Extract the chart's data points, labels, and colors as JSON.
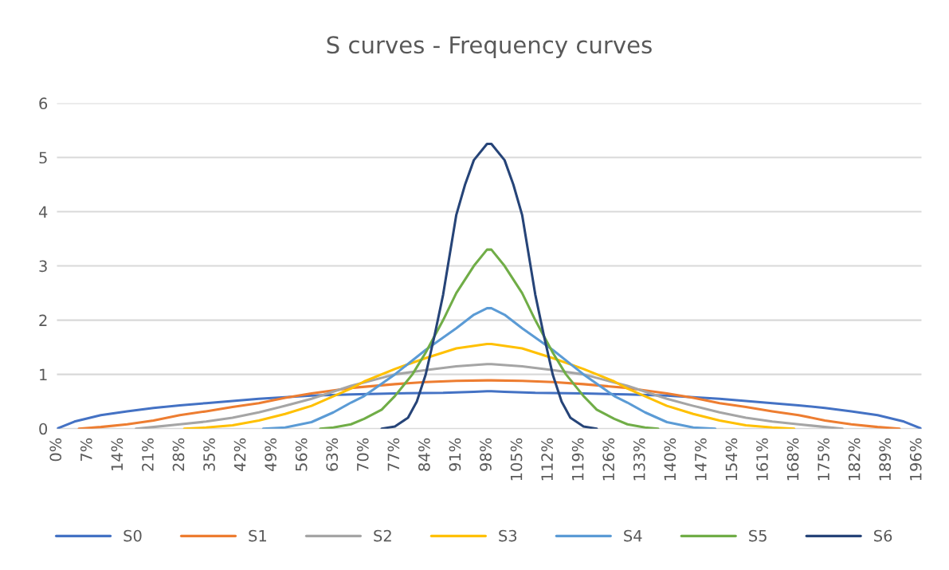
{
  "chart_data": {
    "type": "line",
    "title": "S curves - Frequency curves",
    "xlim": [
      0,
      197
    ],
    "xticks": [
      {
        "value": 0,
        "label": "0%"
      },
      {
        "value": 7,
        "label": "7%"
      },
      {
        "value": 14,
        "label": "14%"
      },
      {
        "value": 21,
        "label": "21%"
      },
      {
        "value": 28,
        "label": "28%"
      },
      {
        "value": 35,
        "label": "35%"
      },
      {
        "value": 42,
        "label": "42%"
      },
      {
        "value": 49,
        "label": "49%"
      },
      {
        "value": 56,
        "label": "56%"
      },
      {
        "value": 63,
        "label": "63%"
      },
      {
        "value": 70,
        "label": "70%"
      },
      {
        "value": 77,
        "label": "77%"
      },
      {
        "value": 84,
        "label": "84%"
      },
      {
        "value": 91,
        "label": "91%"
      },
      {
        "value": 98,
        "label": "98%"
      },
      {
        "value": 105,
        "label": "105%"
      },
      {
        "value": 112,
        "label": "112%"
      },
      {
        "value": 119,
        "label": "119%"
      },
      {
        "value": 126,
        "label": "126%"
      },
      {
        "value": 133,
        "label": "133%"
      },
      {
        "value": 140,
        "label": "140%"
      },
      {
        "value": 147,
        "label": "147%"
      },
      {
        "value": 154,
        "label": "154%"
      },
      {
        "value": 161,
        "label": "161%"
      },
      {
        "value": 168,
        "label": "168%"
      },
      {
        "value": 175,
        "label": "175%"
      },
      {
        "value": 182,
        "label": "182%"
      },
      {
        "value": 189,
        "label": "189%"
      },
      {
        "value": 196,
        "label": "196%"
      }
    ],
    "ylim": [
      0,
      6
    ],
    "yticks": [
      0,
      1,
      2,
      3,
      4,
      5,
      6
    ],
    "grid": "y",
    "legend": "bottom",
    "marker": "none",
    "line_style": "solid",
    "series": [
      {
        "name": "S0",
        "color": "#4472c4",
        "x": [
          0,
          4,
          10,
          16,
          22,
          28,
          34,
          40,
          46,
          52,
          58,
          67,
          77,
          88,
          95,
          98,
          99,
          102,
          109,
          120,
          130,
          139,
          145,
          151,
          157,
          163,
          169,
          175,
          181,
          187,
          193,
          197
        ],
        "values": [
          0,
          0.13,
          0.25,
          0.32,
          0.38,
          0.43,
          0.47,
          0.51,
          0.55,
          0.58,
          0.61,
          0.63,
          0.65,
          0.66,
          0.68,
          0.69,
          0.69,
          0.68,
          0.66,
          0.65,
          0.63,
          0.61,
          0.58,
          0.55,
          0.51,
          0.47,
          0.43,
          0.38,
          0.32,
          0.25,
          0.13,
          0
        ]
      },
      {
        "name": "S1",
        "color": "#ed7d31",
        "x": [
          5,
          10,
          16,
          22,
          28,
          34,
          40,
          46,
          52,
          58,
          67,
          77,
          84,
          91,
          98,
          99,
          106,
          113,
          120,
          130,
          139,
          145,
          151,
          157,
          163,
          169,
          175,
          181,
          187,
          192
        ],
        "values": [
          0,
          0.03,
          0.08,
          0.15,
          0.25,
          0.32,
          0.4,
          0.47,
          0.57,
          0.65,
          0.75,
          0.82,
          0.86,
          0.88,
          0.89,
          0.89,
          0.88,
          0.86,
          0.82,
          0.75,
          0.65,
          0.57,
          0.47,
          0.4,
          0.32,
          0.25,
          0.15,
          0.08,
          0.03,
          0
        ]
      },
      {
        "name": "S2",
        "color": "#a5a5a5",
        "x": [
          18,
          22,
          28,
          34,
          40,
          46,
          52,
          58,
          67,
          70,
          77,
          84,
          91,
          98,
          99,
          106,
          113,
          120,
          127,
          130,
          139,
          145,
          151,
          157,
          163,
          169,
          175,
          179
        ],
        "values": [
          0,
          0.03,
          0.08,
          0.13,
          0.2,
          0.3,
          0.42,
          0.55,
          0.79,
          0.85,
          1.0,
          1.08,
          1.15,
          1.19,
          1.19,
          1.15,
          1.08,
          1.0,
          0.85,
          0.79,
          0.55,
          0.42,
          0.3,
          0.2,
          0.13,
          0.08,
          0.03,
          0
        ]
      },
      {
        "name": "S3",
        "color": "#ffc000",
        "x": [
          29,
          34,
          40,
          46,
          52,
          58,
          67,
          70,
          77,
          84,
          91,
          98,
          99,
          106,
          113,
          120,
          127,
          130,
          139,
          145,
          151,
          157,
          163,
          168
        ],
        "values": [
          0,
          0.02,
          0.06,
          0.15,
          0.27,
          0.42,
          0.74,
          0.87,
          1.1,
          1.3,
          1.48,
          1.56,
          1.56,
          1.48,
          1.3,
          1.1,
          0.87,
          0.74,
          0.42,
          0.27,
          0.15,
          0.06,
          0.02,
          0
        ]
      },
      {
        "name": "S4",
        "color": "#5b9bd5",
        "x": [
          47,
          52,
          58,
          63,
          67,
          70,
          77,
          84,
          91,
          95,
          98,
          99,
          102,
          106,
          113,
          120,
          127,
          130,
          134,
          139,
          145,
          150
        ],
        "values": [
          0,
          0.02,
          0.12,
          0.3,
          0.48,
          0.6,
          1.0,
          1.45,
          1.85,
          2.1,
          2.22,
          2.22,
          2.1,
          1.85,
          1.45,
          1.0,
          0.6,
          0.48,
          0.3,
          0.12,
          0.02,
          0
        ]
      },
      {
        "name": "S5",
        "color": "#70ad47",
        "x": [
          60,
          63,
          67,
          70,
          74,
          77,
          81,
          84,
          88,
          91,
          95,
          98,
          99,
          102,
          106,
          109,
          113,
          116,
          120,
          123,
          127,
          130,
          134,
          137
        ],
        "values": [
          0,
          0.02,
          0.08,
          0.18,
          0.35,
          0.6,
          1.0,
          1.4,
          2.0,
          2.5,
          3.0,
          3.3,
          3.3,
          3.0,
          2.5,
          2.0,
          1.4,
          1.0,
          0.6,
          0.35,
          0.18,
          0.08,
          0.02,
          0
        ]
      },
      {
        "name": "S6",
        "color": "#264478",
        "x": [
          74,
          77,
          80,
          82,
          84,
          86,
          88,
          91,
          93,
          95,
          98,
          99,
          102,
          104,
          106,
          109,
          111,
          113,
          115,
          117,
          120,
          123
        ],
        "values": [
          0,
          0.04,
          0.2,
          0.5,
          0.99,
          1.7,
          2.47,
          3.94,
          4.5,
          4.95,
          5.25,
          5.25,
          4.95,
          4.5,
          3.94,
          2.47,
          1.7,
          0.99,
          0.5,
          0.2,
          0.04,
          0
        ]
      }
    ]
  }
}
